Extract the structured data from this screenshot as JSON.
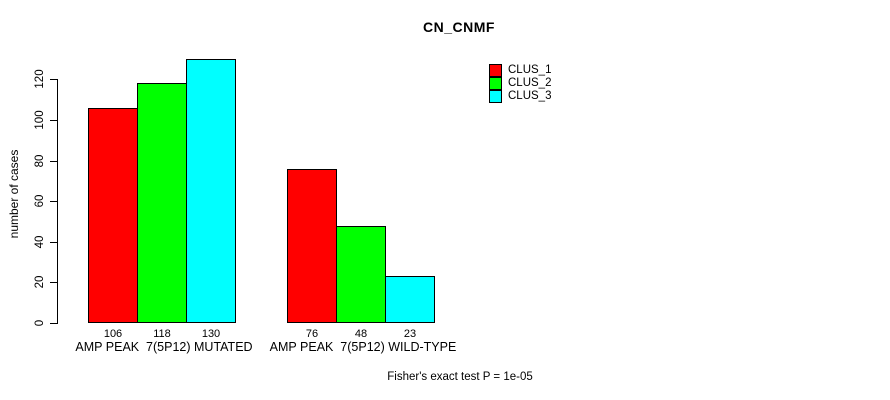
{
  "chart_data": {
    "type": "bar",
    "title": "CN_CNMF",
    "xlabel": "",
    "ylabel": "number of cases",
    "ylim": [
      0,
      130
    ],
    "yticks": [
      0,
      20,
      40,
      60,
      80,
      100,
      120
    ],
    "grid": false,
    "legend_position": "top-right",
    "categories": [
      "AMP PEAK  7(5P12) MUTATED",
      "AMP PEAK  7(5P12) WILD-TYPE"
    ],
    "series": [
      {
        "name": "CLUS_1",
        "color": "#ff0000",
        "values": [
          106,
          76
        ]
      },
      {
        "name": "CLUS_2",
        "color": "#00ff00",
        "values": [
          118,
          48
        ]
      },
      {
        "name": "CLUS_3",
        "color": "#00ffff",
        "values": [
          130,
          23
        ]
      }
    ],
    "bar_value_labels": [
      [
        "106",
        "118",
        "130"
      ],
      [
        "76",
        "48",
        "23"
      ]
    ],
    "annotation": "Fisher's exact test P = 1e-05"
  }
}
